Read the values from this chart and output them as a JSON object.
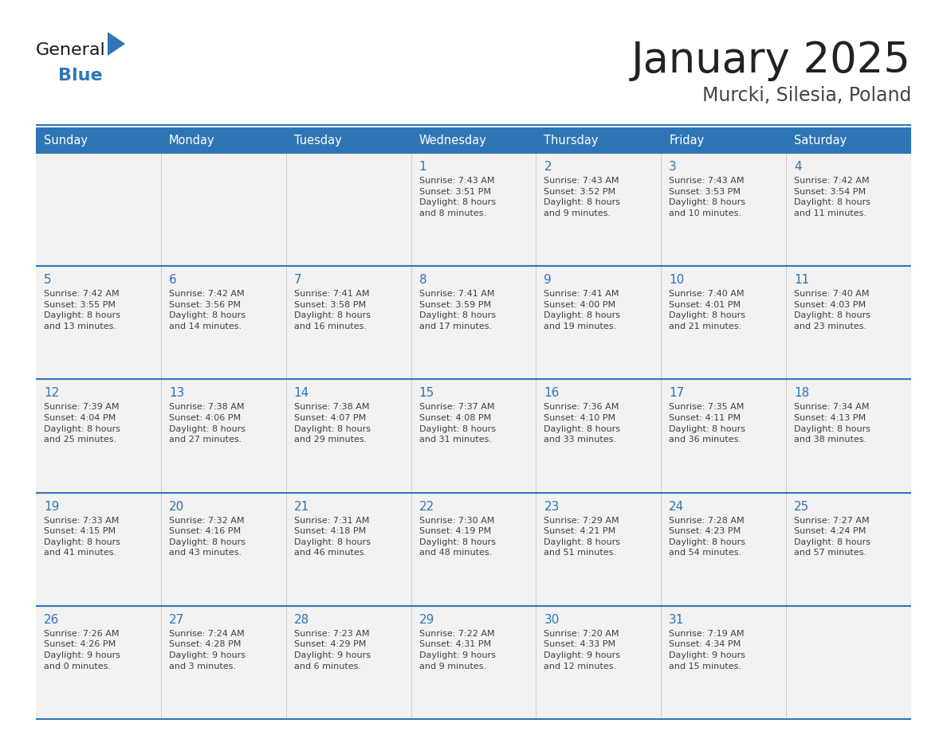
{
  "title": "January 2025",
  "subtitle": "Murcki, Silesia, Poland",
  "header_bg": "#2E75B6",
  "header_text_color": "#FFFFFF",
  "cell_bg": "#F2F2F2",
  "cell_bg_white": "#FFFFFF",
  "grid_line_color": "#2E75B6",
  "day_number_color": "#2E75B6",
  "detail_text_color": "#404040",
  "title_color": "#222222",
  "subtitle_color": "#444444",
  "days_of_week": [
    "Sunday",
    "Monday",
    "Tuesday",
    "Wednesday",
    "Thursday",
    "Friday",
    "Saturday"
  ],
  "weeks": [
    [
      {
        "day": "",
        "info": ""
      },
      {
        "day": "",
        "info": ""
      },
      {
        "day": "",
        "info": ""
      },
      {
        "day": "1",
        "info": "Sunrise: 7:43 AM\nSunset: 3:51 PM\nDaylight: 8 hours\nand 8 minutes."
      },
      {
        "day": "2",
        "info": "Sunrise: 7:43 AM\nSunset: 3:52 PM\nDaylight: 8 hours\nand 9 minutes."
      },
      {
        "day": "3",
        "info": "Sunrise: 7:43 AM\nSunset: 3:53 PM\nDaylight: 8 hours\nand 10 minutes."
      },
      {
        "day": "4",
        "info": "Sunrise: 7:42 AM\nSunset: 3:54 PM\nDaylight: 8 hours\nand 11 minutes."
      }
    ],
    [
      {
        "day": "5",
        "info": "Sunrise: 7:42 AM\nSunset: 3:55 PM\nDaylight: 8 hours\nand 13 minutes."
      },
      {
        "day": "6",
        "info": "Sunrise: 7:42 AM\nSunset: 3:56 PM\nDaylight: 8 hours\nand 14 minutes."
      },
      {
        "day": "7",
        "info": "Sunrise: 7:41 AM\nSunset: 3:58 PM\nDaylight: 8 hours\nand 16 minutes."
      },
      {
        "day": "8",
        "info": "Sunrise: 7:41 AM\nSunset: 3:59 PM\nDaylight: 8 hours\nand 17 minutes."
      },
      {
        "day": "9",
        "info": "Sunrise: 7:41 AM\nSunset: 4:00 PM\nDaylight: 8 hours\nand 19 minutes."
      },
      {
        "day": "10",
        "info": "Sunrise: 7:40 AM\nSunset: 4:01 PM\nDaylight: 8 hours\nand 21 minutes."
      },
      {
        "day": "11",
        "info": "Sunrise: 7:40 AM\nSunset: 4:03 PM\nDaylight: 8 hours\nand 23 minutes."
      }
    ],
    [
      {
        "day": "12",
        "info": "Sunrise: 7:39 AM\nSunset: 4:04 PM\nDaylight: 8 hours\nand 25 minutes."
      },
      {
        "day": "13",
        "info": "Sunrise: 7:38 AM\nSunset: 4:06 PM\nDaylight: 8 hours\nand 27 minutes."
      },
      {
        "day": "14",
        "info": "Sunrise: 7:38 AM\nSunset: 4:07 PM\nDaylight: 8 hours\nand 29 minutes."
      },
      {
        "day": "15",
        "info": "Sunrise: 7:37 AM\nSunset: 4:08 PM\nDaylight: 8 hours\nand 31 minutes."
      },
      {
        "day": "16",
        "info": "Sunrise: 7:36 AM\nSunset: 4:10 PM\nDaylight: 8 hours\nand 33 minutes."
      },
      {
        "day": "17",
        "info": "Sunrise: 7:35 AM\nSunset: 4:11 PM\nDaylight: 8 hours\nand 36 minutes."
      },
      {
        "day": "18",
        "info": "Sunrise: 7:34 AM\nSunset: 4:13 PM\nDaylight: 8 hours\nand 38 minutes."
      }
    ],
    [
      {
        "day": "19",
        "info": "Sunrise: 7:33 AM\nSunset: 4:15 PM\nDaylight: 8 hours\nand 41 minutes."
      },
      {
        "day": "20",
        "info": "Sunrise: 7:32 AM\nSunset: 4:16 PM\nDaylight: 8 hours\nand 43 minutes."
      },
      {
        "day": "21",
        "info": "Sunrise: 7:31 AM\nSunset: 4:18 PM\nDaylight: 8 hours\nand 46 minutes."
      },
      {
        "day": "22",
        "info": "Sunrise: 7:30 AM\nSunset: 4:19 PM\nDaylight: 8 hours\nand 48 minutes."
      },
      {
        "day": "23",
        "info": "Sunrise: 7:29 AM\nSunset: 4:21 PM\nDaylight: 8 hours\nand 51 minutes."
      },
      {
        "day": "24",
        "info": "Sunrise: 7:28 AM\nSunset: 4:23 PM\nDaylight: 8 hours\nand 54 minutes."
      },
      {
        "day": "25",
        "info": "Sunrise: 7:27 AM\nSunset: 4:24 PM\nDaylight: 8 hours\nand 57 minutes."
      }
    ],
    [
      {
        "day": "26",
        "info": "Sunrise: 7:26 AM\nSunset: 4:26 PM\nDaylight: 9 hours\nand 0 minutes."
      },
      {
        "day": "27",
        "info": "Sunrise: 7:24 AM\nSunset: 4:28 PM\nDaylight: 9 hours\nand 3 minutes."
      },
      {
        "day": "28",
        "info": "Sunrise: 7:23 AM\nSunset: 4:29 PM\nDaylight: 9 hours\nand 6 minutes."
      },
      {
        "day": "29",
        "info": "Sunrise: 7:22 AM\nSunset: 4:31 PM\nDaylight: 9 hours\nand 9 minutes."
      },
      {
        "day": "30",
        "info": "Sunrise: 7:20 AM\nSunset: 4:33 PM\nDaylight: 9 hours\nand 12 minutes."
      },
      {
        "day": "31",
        "info": "Sunrise: 7:19 AM\nSunset: 4:34 PM\nDaylight: 9 hours\nand 15 minutes."
      },
      {
        "day": "",
        "info": ""
      }
    ]
  ],
  "logo_text_general": "General",
  "logo_text_blue": "Blue",
  "logo_color_general": "#1a1a1a",
  "logo_color_blue": "#2E75B6",
  "logo_triangle_color": "#2E75B6",
  "fig_width": 11.88,
  "fig_height": 9.18,
  "dpi": 100
}
